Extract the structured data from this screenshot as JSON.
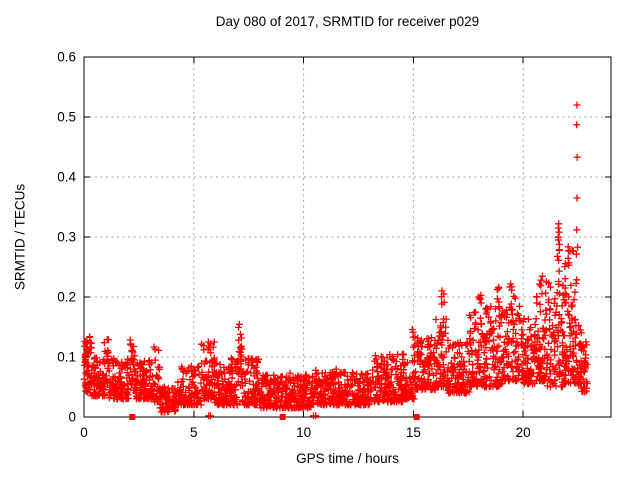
{
  "title": "Day 080 of 2017, SRMTID for receiver p029",
  "chart_data": {
    "type": "scatter",
    "title": "Day 080 of 2017, SRMTID for receiver p029",
    "xlabel": "GPS time / hours",
    "ylabel": "SRMTID / TECUs",
    "xlim": [
      0,
      24
    ],
    "ylim": [
      0,
      0.6
    ],
    "xticks": {
      "values": [
        0,
        5,
        10,
        15,
        20
      ],
      "labels": [
        "0",
        "5",
        "10",
        "15",
        "20"
      ]
    },
    "yticks": {
      "values": [
        0,
        0.1,
        0.2,
        0.3,
        0.4,
        0.5,
        0.6
      ],
      "labels": [
        "0",
        "0.1",
        "0.2",
        "0.3",
        "0.4",
        "0.5",
        "0.6"
      ]
    },
    "grid": {
      "visible": true,
      "style": "dotted",
      "color": "#a6a6a6"
    },
    "legend": {
      "visible": false
    },
    "axis_color": "#000000",
    "background_color": "#ffffff",
    "seed": 20170080,
    "series": [
      {
        "name": "SRMTID",
        "marker": "plus",
        "color": "#ff0000",
        "bands_format": "[x_start_hr, x_end_hr, y_min_TECU, y_max_TECU, point_count, low_bias_exponent]",
        "density_bands": [
          [
            0.0,
            0.35,
            0.04,
            0.135,
            45,
            1.5
          ],
          [
            0.05,
            0.2,
            0.09,
            0.14,
            10,
            1.0
          ],
          [
            0.35,
            0.95,
            0.035,
            0.1,
            70,
            1.7
          ],
          [
            0.9,
            1.15,
            0.05,
            0.13,
            25,
            1.3
          ],
          [
            1.15,
            2.05,
            0.03,
            0.1,
            100,
            1.7
          ],
          [
            2.05,
            2.35,
            0.04,
            0.135,
            30,
            1.3
          ],
          [
            2.35,
            3.15,
            0.03,
            0.095,
            90,
            1.7
          ],
          [
            3.15,
            3.45,
            0.025,
            0.13,
            35,
            1.6
          ],
          [
            3.45,
            4.2,
            0.008,
            0.05,
            70,
            1.4
          ],
          [
            4.2,
            5.35,
            0.02,
            0.085,
            110,
            1.7
          ],
          [
            5.35,
            5.95,
            0.03,
            0.125,
            70,
            1.6
          ],
          [
            5.95,
            6.55,
            0.02,
            0.09,
            70,
            1.7
          ],
          [
            6.55,
            7.0,
            0.02,
            0.1,
            55,
            1.6
          ],
          [
            7.0,
            7.2,
            0.05,
            0.155,
            25,
            1.2
          ],
          [
            7.2,
            8.05,
            0.02,
            0.1,
            90,
            1.8
          ],
          [
            8.05,
            9.55,
            0.015,
            0.075,
            160,
            1.6
          ],
          [
            9.55,
            10.55,
            0.015,
            0.07,
            105,
            1.6
          ],
          [
            10.55,
            11.55,
            0.02,
            0.08,
            110,
            1.6
          ],
          [
            11.55,
            13.05,
            0.02,
            0.075,
            160,
            1.6
          ],
          [
            13.05,
            14.55,
            0.025,
            0.105,
            160,
            1.7
          ],
          [
            14.55,
            15.1,
            0.03,
            0.095,
            55,
            1.6
          ],
          [
            14.95,
            15.08,
            0.09,
            0.148,
            8,
            1.0
          ],
          [
            15.1,
            16.0,
            0.045,
            0.135,
            100,
            1.5
          ],
          [
            16.0,
            16.5,
            0.05,
            0.165,
            55,
            1.5
          ],
          [
            16.25,
            16.4,
            0.17,
            0.212,
            5,
            1.0
          ],
          [
            16.5,
            17.55,
            0.04,
            0.13,
            110,
            1.6
          ],
          [
            17.55,
            18.25,
            0.05,
            0.175,
            80,
            1.6
          ],
          [
            17.95,
            18.1,
            0.18,
            0.212,
            5,
            1.0
          ],
          [
            18.25,
            19.05,
            0.05,
            0.185,
            90,
            1.6
          ],
          [
            18.8,
            18.95,
            0.19,
            0.222,
            6,
            1.0
          ],
          [
            19.05,
            19.85,
            0.06,
            0.19,
            90,
            1.6
          ],
          [
            19.35,
            19.65,
            0.195,
            0.225,
            6,
            1.0
          ],
          [
            19.85,
            20.55,
            0.055,
            0.165,
            80,
            1.6
          ],
          [
            20.55,
            21.05,
            0.06,
            0.21,
            65,
            1.6
          ],
          [
            20.75,
            20.9,
            0.215,
            0.235,
            4,
            1.0
          ],
          [
            21.05,
            21.85,
            0.05,
            0.245,
            95,
            1.7
          ],
          [
            21.55,
            21.68,
            0.25,
            0.3,
            6,
            1.0
          ],
          [
            21.85,
            22.6,
            0.055,
            0.29,
            110,
            1.9
          ],
          [
            22.6,
            22.92,
            0.04,
            0.145,
            45,
            1.5
          ]
        ],
        "outliers": [
          [
            22.45,
            0.52
          ],
          [
            22.44,
            0.487
          ],
          [
            22.46,
            0.433
          ],
          [
            22.45,
            0.365
          ],
          [
            22.44,
            0.312
          ],
          [
            22.48,
            0.283
          ],
          [
            21.62,
            0.322
          ],
          [
            21.6,
            0.315
          ],
          [
            21.64,
            0.308
          ],
          [
            21.59,
            0.3
          ],
          [
            21.61,
            0.295
          ],
          [
            5.68,
            0.002
          ],
          [
            5.76,
            0.002
          ],
          [
            10.45,
            0.002
          ],
          [
            10.55,
            0.002
          ]
        ]
      }
    ],
    "event_markers": {
      "marker": "filled-square",
      "color": "#ff0000",
      "y": 0,
      "x": [
        2.2,
        9.05,
        15.15
      ]
    }
  }
}
